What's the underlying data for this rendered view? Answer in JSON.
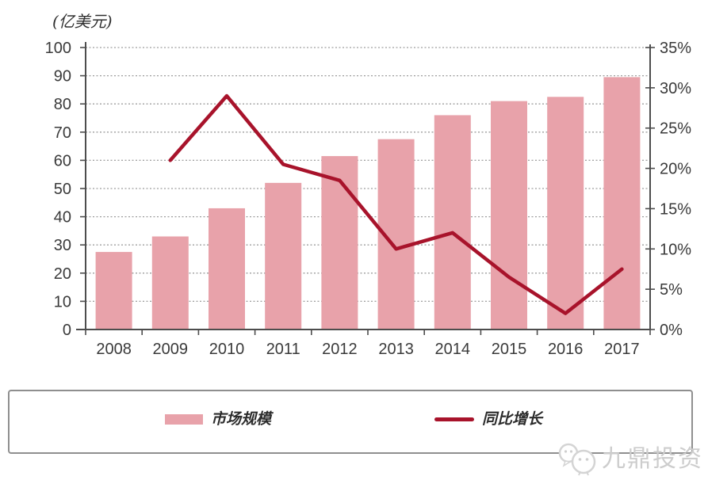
{
  "chart_data": {
    "type": "combo-bar-line",
    "title": "",
    "unit_label": "(亿美元)",
    "categories": [
      "2008",
      "2009",
      "2010",
      "2011",
      "2012",
      "2013",
      "2014",
      "2015",
      "2016",
      "2017"
    ],
    "series": [
      {
        "name": "市场规模",
        "type": "bar",
        "axis": "left",
        "values": [
          27.5,
          33,
          43,
          52,
          61.5,
          67.5,
          76,
          81,
          82.5,
          89.5
        ]
      },
      {
        "name": "同比增长",
        "type": "line",
        "axis": "right",
        "values": [
          null,
          21,
          29,
          20.5,
          18.5,
          10,
          12,
          6.5,
          2,
          7.5
        ]
      }
    ],
    "left_axis": {
      "min": 0,
      "max": 100,
      "step": 10,
      "tick_labels": [
        "0",
        "10",
        "20",
        "30",
        "40",
        "50",
        "60",
        "70",
        "80",
        "90",
        "100"
      ]
    },
    "right_axis": {
      "min": 0,
      "max": 35,
      "step": 5,
      "tick_labels": [
        "0%",
        "5%",
        "10%",
        "15%",
        "20%",
        "25%",
        "30%",
        "35%"
      ]
    },
    "grid": {
      "horizontal": true,
      "style": "dotted"
    },
    "legend_position": "bottom",
    "colors": {
      "bar": "#e8a2aa",
      "line": "#a8132b",
      "grid": "#9e9e9e",
      "axis": "#4d4d4d",
      "text": "#3a3a3a"
    }
  },
  "legend": {
    "items": [
      {
        "label": "市场规模",
        "swatch": "bar"
      },
      {
        "label": "同比增长",
        "swatch": "line"
      }
    ]
  },
  "watermark": {
    "text": "九鼎投资"
  }
}
